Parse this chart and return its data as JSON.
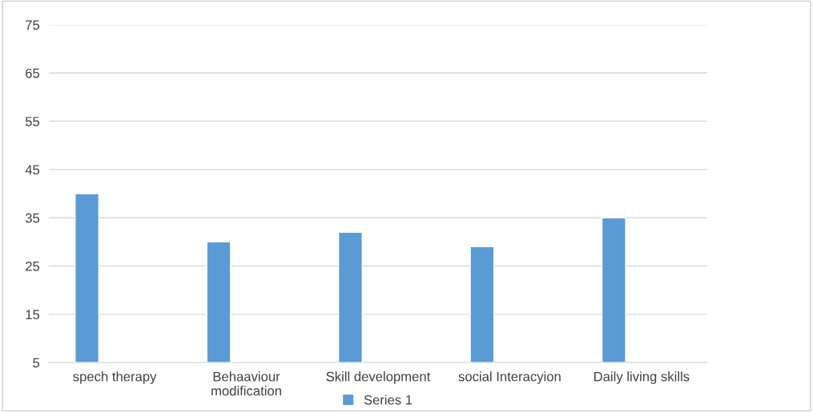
{
  "chart_data": {
    "type": "bar",
    "categories": [
      "spech therapy",
      "Behaaviour modification",
      "Skill development",
      "social Interacyion",
      "Daily living skills"
    ],
    "series": [
      {
        "name": "Series 1",
        "color": "#5b9bd5",
        "values": [
          40,
          30,
          32,
          29,
          35
        ]
      }
    ],
    "ylim": [
      5,
      75
    ],
    "yticks": [
      5,
      15,
      25,
      35,
      45,
      55,
      65,
      75
    ],
    "grid": "y",
    "legend": "bottom"
  }
}
